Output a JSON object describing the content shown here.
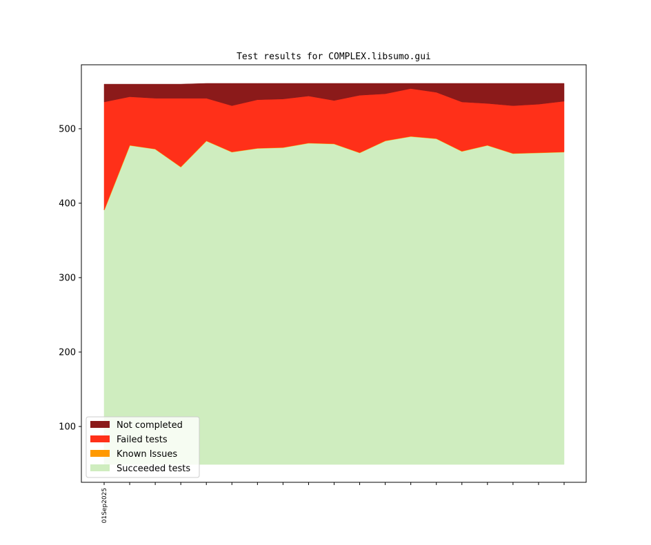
{
  "chart_data": {
    "type": "stacked_area",
    "title": "Test results for COMPLEX.libsumo.gui",
    "categories": [
      "01Sep2025",
      null,
      null,
      null,
      null,
      null,
      null,
      null,
      null,
      null,
      null,
      null,
      null,
      null,
      null,
      null,
      null,
      null,
      null
    ],
    "series": [
      {
        "name": "Not completed",
        "color": "#8b1a1a",
        "values": [
          24,
          17,
          19,
          19,
          20,
          30,
          22,
          21,
          17,
          23,
          16,
          14,
          7,
          12,
          25,
          27,
          30,
          28,
          24
        ]
      },
      {
        "name": "Failed tests",
        "color": "#ff3019",
        "values": [
          145,
          65,
          68,
          92,
          57,
          62,
          65,
          65,
          63,
          58,
          77,
          63,
          64,
          62,
          66,
          56,
          64,
          65,
          68
        ]
      },
      {
        "name": "Known Issues",
        "color": "#ff9900",
        "values": [
          0,
          0,
          0,
          0,
          0,
          0,
          0,
          0,
          0,
          0,
          0,
          0,
          0,
          0,
          0,
          0,
          0,
          0,
          0
        ]
      },
      {
        "name": "Succeeded tests",
        "color": "#cfedbf",
        "values": [
          391,
          478,
          473,
          449,
          484,
          469,
          474,
          475,
          481,
          480,
          468,
          484,
          490,
          487,
          470,
          478,
          467,
          468,
          469
        ]
      }
    ],
    "baseline": 49,
    "ylim": [
      25,
      586
    ],
    "yticks": [
      100,
      200,
      300,
      400,
      500
    ],
    "legend": "lower left"
  }
}
